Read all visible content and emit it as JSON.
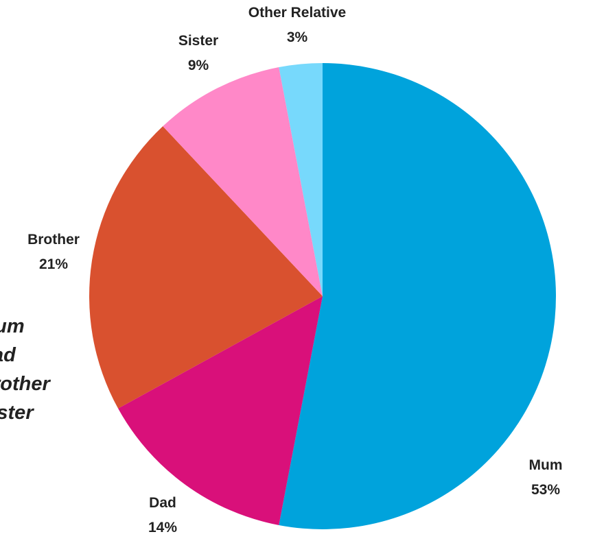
{
  "chart_data": {
    "type": "pie",
    "categories": [
      "Mum",
      "Dad",
      "Brother",
      "Sister",
      "Other Relative"
    ],
    "values": [
      53,
      14,
      21,
      9,
      3
    ],
    "value_labels": [
      "53%",
      "14%",
      "21%",
      "9%",
      "3%"
    ],
    "colors": [
      "#00a3dc",
      "#d9107a",
      "#d9512f",
      "#ff88c8",
      "#77d9fc"
    ],
    "legend": "left"
  }
}
